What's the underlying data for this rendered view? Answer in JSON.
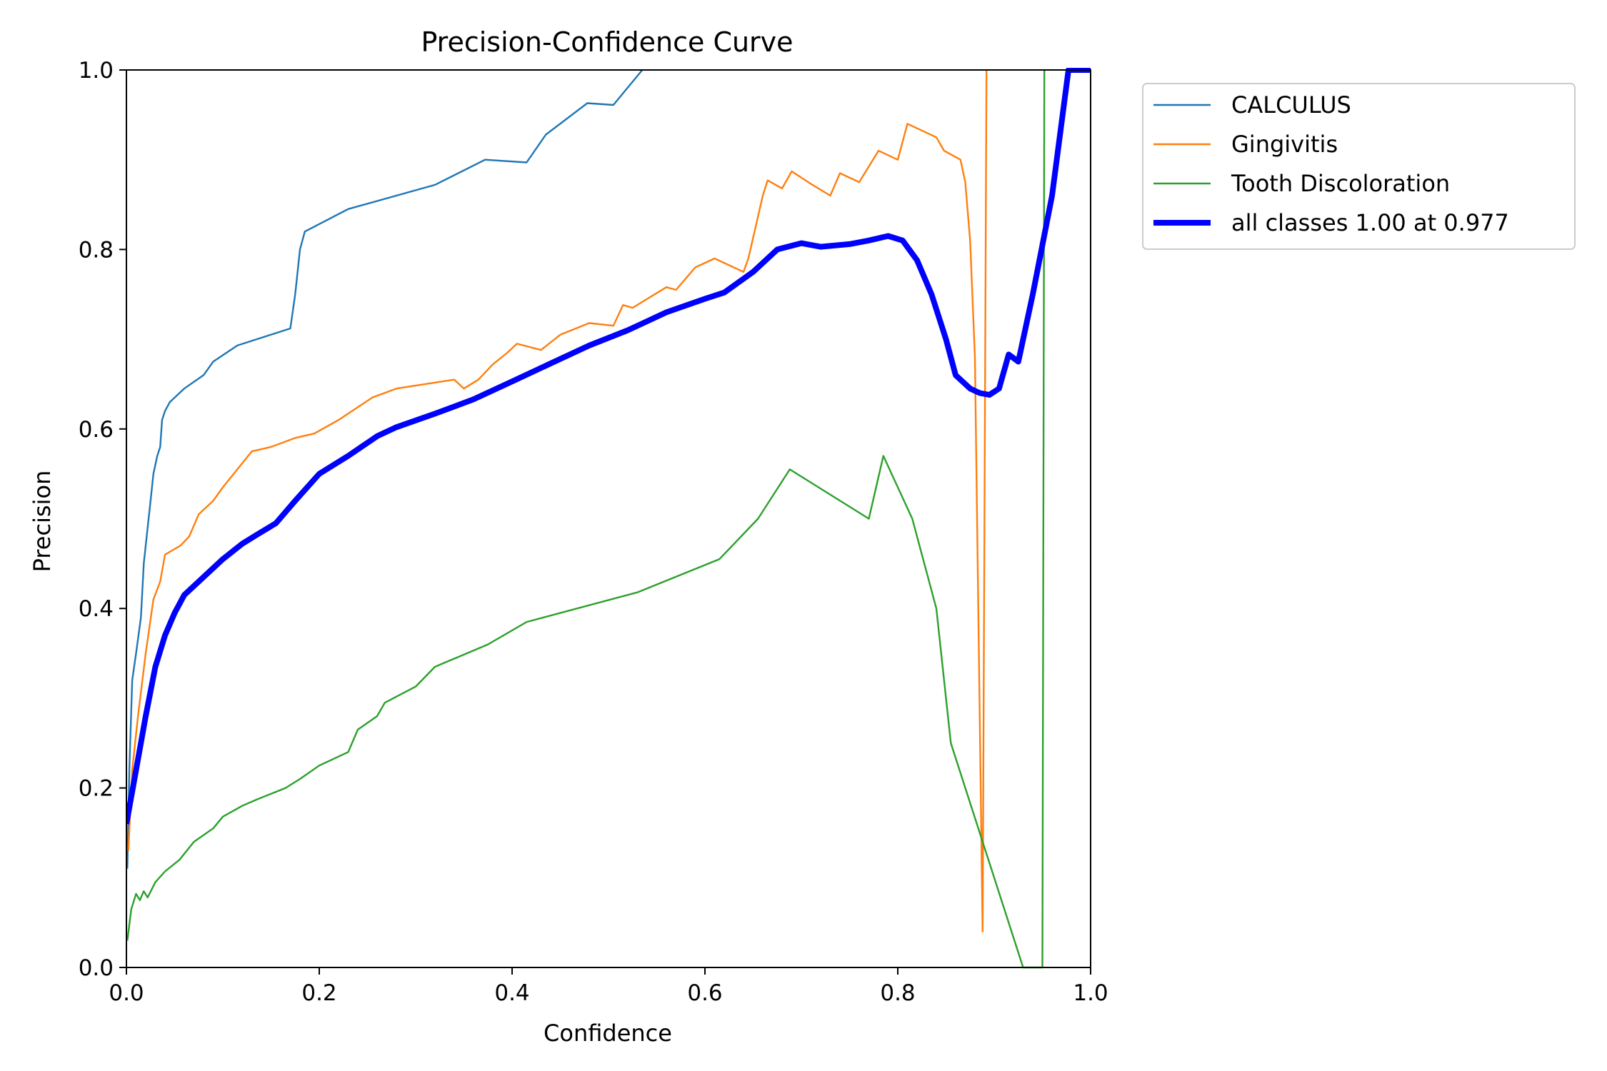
{
  "chart_data": {
    "type": "line",
    "title": "Precision-Confidence Curve",
    "xlabel": "Confidence",
    "ylabel": "Precision",
    "xlim": [
      0,
      1
    ],
    "ylim": [
      0,
      1
    ],
    "x_ticks": [
      "0.0",
      "0.2",
      "0.4",
      "0.6",
      "0.8",
      "1.0"
    ],
    "y_ticks": [
      "0.0",
      "0.2",
      "0.4",
      "0.6",
      "0.8",
      "1.0"
    ],
    "grid": false,
    "legend_position": "outside-upper-right",
    "series": [
      {
        "name": "CALCULUS",
        "color": "#1f77b4",
        "line_width": "thin",
        "points": [
          [
            0.001,
            0.11
          ],
          [
            0.003,
            0.22
          ],
          [
            0.006,
            0.32
          ],
          [
            0.01,
            0.35
          ],
          [
            0.015,
            0.39
          ],
          [
            0.018,
            0.45
          ],
          [
            0.022,
            0.49
          ],
          [
            0.025,
            0.52
          ],
          [
            0.028,
            0.55
          ],
          [
            0.032,
            0.57
          ],
          [
            0.035,
            0.58
          ],
          [
            0.037,
            0.61
          ],
          [
            0.04,
            0.62
          ],
          [
            0.045,
            0.63
          ],
          [
            0.06,
            0.645
          ],
          [
            0.08,
            0.66
          ],
          [
            0.09,
            0.675
          ],
          [
            0.115,
            0.693
          ],
          [
            0.17,
            0.712
          ],
          [
            0.175,
            0.75
          ],
          [
            0.18,
            0.8
          ],
          [
            0.185,
            0.82
          ],
          [
            0.23,
            0.845
          ],
          [
            0.32,
            0.872
          ],
          [
            0.372,
            0.9
          ],
          [
            0.415,
            0.897
          ],
          [
            0.435,
            0.928
          ],
          [
            0.478,
            0.963
          ],
          [
            0.505,
            0.961
          ],
          [
            0.535,
            1.0
          ]
        ]
      },
      {
        "name": "Gingivitis",
        "color": "#ff7f0e",
        "line_width": "thin",
        "points": [
          [
            0.002,
            0.13
          ],
          [
            0.006,
            0.22
          ],
          [
            0.012,
            0.28
          ],
          [
            0.02,
            0.35
          ],
          [
            0.028,
            0.41
          ],
          [
            0.035,
            0.43
          ],
          [
            0.04,
            0.46
          ],
          [
            0.048,
            0.465
          ],
          [
            0.056,
            0.47
          ],
          [
            0.065,
            0.48
          ],
          [
            0.075,
            0.505
          ],
          [
            0.09,
            0.52
          ],
          [
            0.1,
            0.535
          ],
          [
            0.115,
            0.555
          ],
          [
            0.13,
            0.575
          ],
          [
            0.15,
            0.58
          ],
          [
            0.175,
            0.59
          ],
          [
            0.195,
            0.595
          ],
          [
            0.22,
            0.61
          ],
          [
            0.255,
            0.635
          ],
          [
            0.28,
            0.645
          ],
          [
            0.34,
            0.655
          ],
          [
            0.35,
            0.645
          ],
          [
            0.365,
            0.655
          ],
          [
            0.38,
            0.672
          ],
          [
            0.395,
            0.685
          ],
          [
            0.405,
            0.695
          ],
          [
            0.43,
            0.688
          ],
          [
            0.45,
            0.705
          ],
          [
            0.48,
            0.718
          ],
          [
            0.505,
            0.715
          ],
          [
            0.515,
            0.738
          ],
          [
            0.525,
            0.735
          ],
          [
            0.56,
            0.758
          ],
          [
            0.57,
            0.755
          ],
          [
            0.59,
            0.78
          ],
          [
            0.61,
            0.79
          ],
          [
            0.64,
            0.775
          ],
          [
            0.645,
            0.79
          ],
          [
            0.66,
            0.86
          ],
          [
            0.665,
            0.877
          ],
          [
            0.68,
            0.868
          ],
          [
            0.69,
            0.887
          ],
          [
            0.71,
            0.873
          ],
          [
            0.73,
            0.86
          ],
          [
            0.74,
            0.885
          ],
          [
            0.76,
            0.875
          ],
          [
            0.78,
            0.91
          ],
          [
            0.8,
            0.9
          ],
          [
            0.81,
            0.94
          ],
          [
            0.84,
            0.925
          ],
          [
            0.848,
            0.91
          ],
          [
            0.865,
            0.9
          ],
          [
            0.87,
            0.875
          ],
          [
            0.875,
            0.81
          ],
          [
            0.88,
            0.68
          ],
          [
            0.888,
            0.04
          ],
          [
            0.892,
            1.0
          ]
        ]
      },
      {
        "name": "Tooth Discoloration",
        "color": "#2ca02c",
        "line_width": "thin",
        "points": [
          [
            0.001,
            0.03
          ],
          [
            0.005,
            0.065
          ],
          [
            0.01,
            0.082
          ],
          [
            0.014,
            0.075
          ],
          [
            0.018,
            0.085
          ],
          [
            0.022,
            0.078
          ],
          [
            0.03,
            0.095
          ],
          [
            0.04,
            0.107
          ],
          [
            0.055,
            0.12
          ],
          [
            0.07,
            0.14
          ],
          [
            0.09,
            0.155
          ],
          [
            0.1,
            0.168
          ],
          [
            0.12,
            0.18
          ],
          [
            0.135,
            0.187
          ],
          [
            0.165,
            0.2
          ],
          [
            0.18,
            0.21
          ],
          [
            0.2,
            0.225
          ],
          [
            0.23,
            0.24
          ],
          [
            0.24,
            0.265
          ],
          [
            0.26,
            0.28
          ],
          [
            0.268,
            0.295
          ],
          [
            0.3,
            0.313
          ],
          [
            0.32,
            0.335
          ],
          [
            0.375,
            0.36
          ],
          [
            0.415,
            0.385
          ],
          [
            0.53,
            0.418
          ],
          [
            0.615,
            0.455
          ],
          [
            0.655,
            0.5
          ],
          [
            0.688,
            0.555
          ],
          [
            0.77,
            0.5
          ],
          [
            0.785,
            0.57
          ],
          [
            0.815,
            0.5
          ],
          [
            0.84,
            0.4
          ],
          [
            0.855,
            0.25
          ],
          [
            0.93,
            0.0
          ],
          [
            0.95,
            0.0
          ],
          [
            0.952,
            1.0
          ]
        ]
      },
      {
        "name": "all classes 1.00 at 0.977",
        "color": "#0000ff",
        "line_width": "thick",
        "points": [
          [
            0.0,
            0.16
          ],
          [
            0.01,
            0.22
          ],
          [
            0.02,
            0.28
          ],
          [
            0.03,
            0.335
          ],
          [
            0.04,
            0.37
          ],
          [
            0.05,
            0.395
          ],
          [
            0.06,
            0.415
          ],
          [
            0.08,
            0.435
          ],
          [
            0.1,
            0.455
          ],
          [
            0.12,
            0.472
          ],
          [
            0.135,
            0.482
          ],
          [
            0.155,
            0.495
          ],
          [
            0.175,
            0.52
          ],
          [
            0.2,
            0.55
          ],
          [
            0.23,
            0.57
          ],
          [
            0.26,
            0.592
          ],
          [
            0.28,
            0.602
          ],
          [
            0.32,
            0.617
          ],
          [
            0.36,
            0.633
          ],
          [
            0.4,
            0.653
          ],
          [
            0.44,
            0.673
          ],
          [
            0.48,
            0.693
          ],
          [
            0.52,
            0.71
          ],
          [
            0.56,
            0.73
          ],
          [
            0.6,
            0.745
          ],
          [
            0.62,
            0.752
          ],
          [
            0.65,
            0.775
          ],
          [
            0.675,
            0.8
          ],
          [
            0.7,
            0.807
          ],
          [
            0.72,
            0.803
          ],
          [
            0.75,
            0.806
          ],
          [
            0.77,
            0.81
          ],
          [
            0.79,
            0.815
          ],
          [
            0.805,
            0.81
          ],
          [
            0.82,
            0.788
          ],
          [
            0.835,
            0.75
          ],
          [
            0.85,
            0.7
          ],
          [
            0.86,
            0.66
          ],
          [
            0.875,
            0.645
          ],
          [
            0.885,
            0.64
          ],
          [
            0.895,
            0.638
          ],
          [
            0.905,
            0.645
          ],
          [
            0.915,
            0.683
          ],
          [
            0.925,
            0.675
          ],
          [
            0.94,
            0.75
          ],
          [
            0.96,
            0.86
          ],
          [
            0.977,
            1.0
          ],
          [
            1.0,
            1.0
          ]
        ]
      }
    ]
  }
}
